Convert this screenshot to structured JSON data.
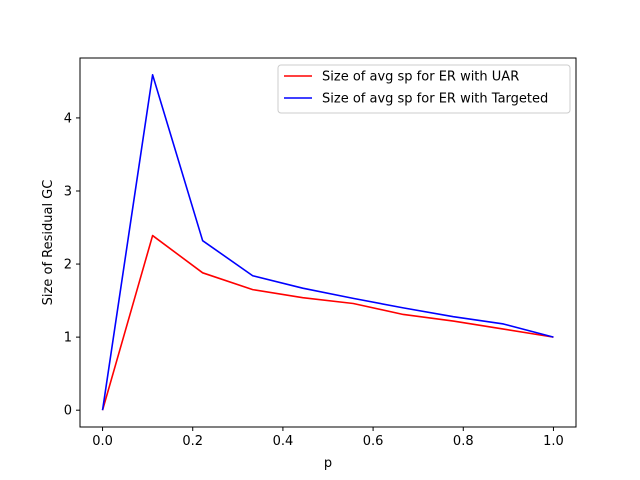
{
  "chart_data": {
    "type": "line",
    "title": "",
    "xlabel": "p",
    "ylabel": "Size of Residual GC",
    "xlim": [
      -0.05,
      1.05
    ],
    "ylim": [
      -0.23,
      4.82
    ],
    "xticks": [
      0.0,
      0.2,
      0.4,
      0.6,
      0.8,
      1.0
    ],
    "xtick_labels": [
      "0.0",
      "0.2",
      "0.4",
      "0.6",
      "0.8",
      "1.0"
    ],
    "yticks": [
      0,
      1,
      2,
      3,
      4
    ],
    "ytick_labels": [
      "0",
      "1",
      "2",
      "3",
      "4"
    ],
    "grid": false,
    "legend_position": "upper right",
    "x": [
      0.0,
      0.111,
      0.222,
      0.333,
      0.444,
      0.556,
      0.667,
      0.778,
      0.889,
      1.0
    ],
    "series": [
      {
        "name": "Size of avg sp for ER with UAR",
        "color": "#ff0000",
        "values": [
          0.0,
          2.39,
          1.88,
          1.65,
          1.54,
          1.46,
          1.31,
          1.22,
          1.11,
          1.0
        ]
      },
      {
        "name": "Size of avg sp for ER with Targeted",
        "color": "#0000ff",
        "values": [
          0.0,
          4.59,
          2.32,
          1.84,
          1.67,
          1.53,
          1.4,
          1.28,
          1.18,
          1.0
        ]
      }
    ]
  }
}
